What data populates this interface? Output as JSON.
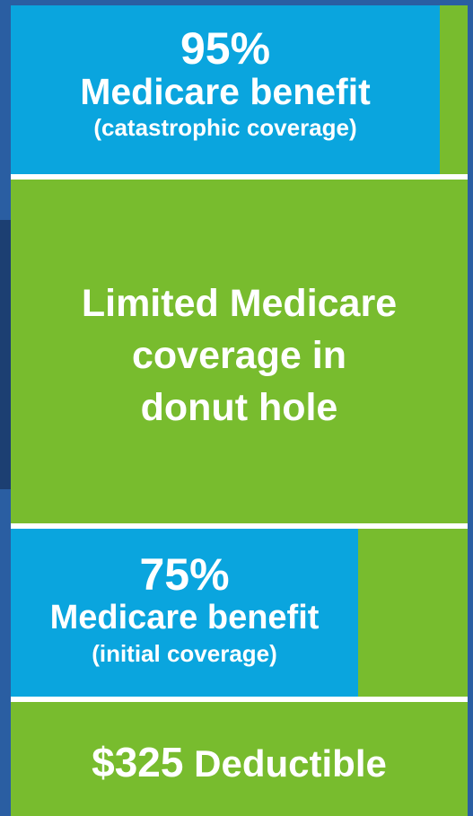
{
  "tiers": {
    "catastrophic": {
      "percent": "95%",
      "label": "Medicare benefit",
      "note": "(catastrophic coverage)",
      "share": 0.95
    },
    "donut_hole": {
      "line1": "Limited Medicare",
      "line2": "coverage in",
      "line3": "donut hole"
    },
    "initial": {
      "percent": "75%",
      "label": "Medicare benefit",
      "note": "(initial coverage)",
      "share": 0.75
    },
    "deductible": {
      "amount": "$325",
      "label": "Deductible"
    }
  },
  "colors": {
    "background": "#2a5ea2",
    "green": "#78bc2e",
    "blue": "#0aa5de",
    "divider": "#ffffff",
    "text": "#ffffff"
  }
}
